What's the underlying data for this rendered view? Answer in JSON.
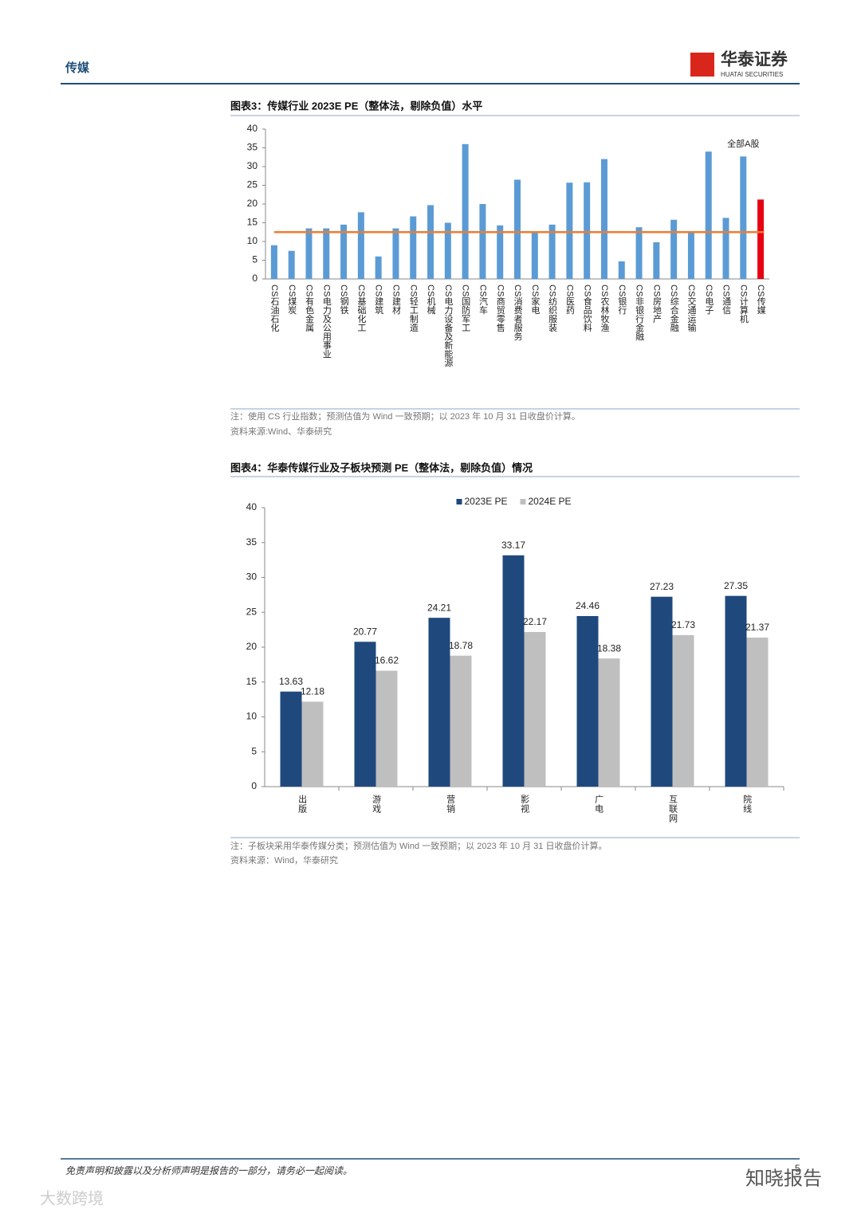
{
  "header": {
    "section": "传媒",
    "brand": "华泰证券",
    "brand_en": "HUATAI SECURITIES"
  },
  "chart_data": [
    {
      "type": "bar",
      "title": "图表3：传媒行业 2023E PE（整体法，剔除负值）水平",
      "categories": [
        "CS石油石化",
        "CS煤炭",
        "CS有色金属",
        "CS电力及公用事业",
        "CS钢铁",
        "CS基础化工",
        "CS建筑",
        "CS建材",
        "CS轻工制造",
        "CS机械",
        "CS电力设备及新能源",
        "CS国防军工",
        "CS汽车",
        "CS商贸零售",
        "CS消费者服务",
        "CS家电",
        "CS纺织服装",
        "CS医药",
        "CS食品饮料",
        "CS农林牧渔",
        "CS银行",
        "CS非银行金融",
        "CS房地产",
        "CS综合金融",
        "CS交通运输",
        "CS电子",
        "CS通信",
        "CS计算机",
        "CS传媒"
      ],
      "values": [
        9,
        7.5,
        13.5,
        13.5,
        14.5,
        17.8,
        6,
        13.5,
        16.7,
        19.7,
        15,
        36,
        20,
        14.3,
        26.5,
        12.3,
        14.5,
        25.7,
        25.8,
        32,
        4.7,
        13.8,
        9.8,
        15.8,
        12.3,
        34,
        16.3,
        32.7,
        21.2
      ],
      "colors": [
        "#5b9bd5",
        "#5b9bd5",
        "#5b9bd5",
        "#5b9bd5",
        "#5b9bd5",
        "#5b9bd5",
        "#5b9bd5",
        "#5b9bd5",
        "#5b9bd5",
        "#5b9bd5",
        "#5b9bd5",
        "#5b9bd5",
        "#5b9bd5",
        "#5b9bd5",
        "#5b9bd5",
        "#5b9bd5",
        "#5b9bd5",
        "#5b9bd5",
        "#5b9bd5",
        "#5b9bd5",
        "#5b9bd5",
        "#5b9bd5",
        "#5b9bd5",
        "#5b9bd5",
        "#5b9bd5",
        "#5b9bd5",
        "#5b9bd5",
        "#5b9bd5",
        "#e60012"
      ],
      "reference_line": {
        "label": "全部A股",
        "value": 12.5,
        "color": "#ed7d31"
      },
      "ylim": [
        0,
        40
      ],
      "yticks": [
        0,
        5,
        10,
        15,
        20,
        25,
        30,
        35,
        40
      ],
      "note": "注：使用 CS 行业指数；预测估值为 Wind 一致预期；以 2023 年 10 月 31 日收盘价计算。",
      "source": "资料来源:Wind、华泰研究"
    },
    {
      "type": "bar",
      "title": "图表4：华泰传媒行业及子板块预测 PE（整体法，剔除负值）情况",
      "categories": [
        "出版",
        "游戏",
        "营销",
        "影视",
        "广电",
        "互联网",
        "院线"
      ],
      "series": [
        {
          "name": "2023E PE",
          "color": "#1f497d",
          "values": [
            13.63,
            20.77,
            24.21,
            33.17,
            24.46,
            27.23,
            27.35
          ]
        },
        {
          "name": "2024E PE",
          "color": "#bfbfbf",
          "values": [
            12.18,
            16.62,
            18.78,
            22.17,
            18.38,
            21.73,
            21.37
          ]
        }
      ],
      "data_labels": true,
      "legend": "top",
      "ylim": [
        0,
        40
      ],
      "yticks": [
        0,
        5,
        10,
        15,
        20,
        25,
        30,
        35,
        40
      ],
      "note": "注：子板块采用华泰传媒分类；预测估值为 Wind 一致预期；以 2023 年 10 月 31 日收盘价计算。",
      "source": "资料来源：Wind，华泰研究"
    }
  ],
  "footer": {
    "disclaimer": "免责声明和披露以及分析师声明是报告的一部分，请务必一起阅读。",
    "page": "5"
  },
  "watermarks": [
    "知晓报告",
    "大数跨境"
  ]
}
